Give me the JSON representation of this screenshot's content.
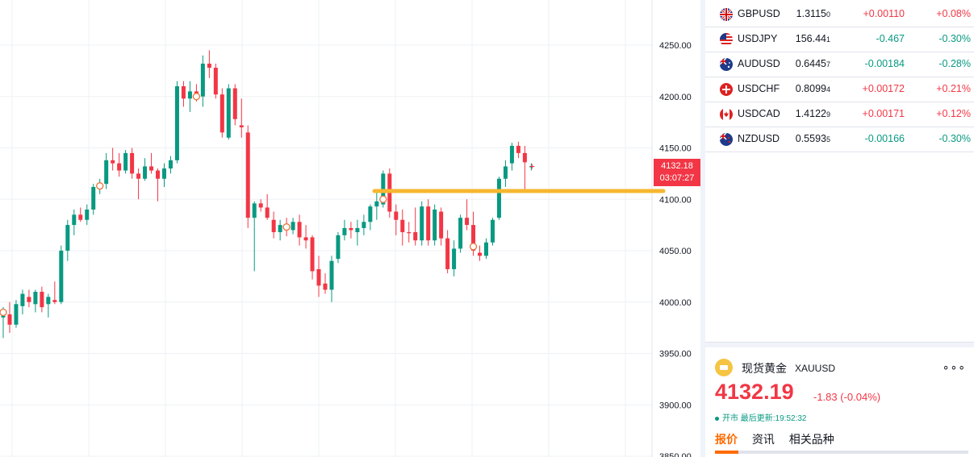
{
  "chart": {
    "price_ticks": [
      "4250.00",
      "4200.00",
      "4150.00",
      "4100.00",
      "4050.00",
      "4000.00",
      "3950.00",
      "3900.00",
      "3850.00"
    ],
    "current_price": "4132.18",
    "countdown": "03:07:27",
    "colors": {
      "up": "#f23645",
      "down": "#089981",
      "level_line": "#f7b731",
      "grid": "#eef0f4"
    }
  },
  "chart_data": {
    "type": "candlestick",
    "ylim": [
      3850,
      4270
    ],
    "horizontal_level": 4108,
    "candles": [
      {
        "o": 3985,
        "h": 3995,
        "l": 3965,
        "c": 3990
      },
      {
        "o": 3988,
        "h": 4000,
        "l": 3970,
        "c": 3978
      },
      {
        "o": 3978,
        "h": 4002,
        "l": 3975,
        "c": 3998
      },
      {
        "o": 3996,
        "h": 4012,
        "l": 3988,
        "c": 4008
      },
      {
        "o": 4005,
        "h": 4012,
        "l": 3995,
        "c": 4000
      },
      {
        "o": 3998,
        "h": 4012,
        "l": 3990,
        "c": 4010
      },
      {
        "o": 4010,
        "h": 4015,
        "l": 3990,
        "c": 3995
      },
      {
        "o": 3998,
        "h": 4008,
        "l": 3985,
        "c": 4005
      },
      {
        "o": 4002,
        "h": 4020,
        "l": 3998,
        "c": 4000
      },
      {
        "o": 4000,
        "h": 4055,
        "l": 3998,
        "c": 4050
      },
      {
        "o": 4050,
        "h": 4080,
        "l": 4040,
        "c": 4075
      },
      {
        "o": 4075,
        "h": 4090,
        "l": 4065,
        "c": 4085
      },
      {
        "o": 4085,
        "h": 4092,
        "l": 4078,
        "c": 4080
      },
      {
        "o": 4080,
        "h": 4095,
        "l": 4075,
        "c": 4090
      },
      {
        "o": 4090,
        "h": 4115,
        "l": 4085,
        "c": 4112
      },
      {
        "o": 4112,
        "h": 4120,
        "l": 4105,
        "c": 4113
      },
      {
        "o": 4115,
        "h": 4145,
        "l": 4110,
        "c": 4138
      },
      {
        "o": 4138,
        "h": 4150,
        "l": 4128,
        "c": 4135
      },
      {
        "o": 4135,
        "h": 4145,
        "l": 4122,
        "c": 4128
      },
      {
        "o": 4128,
        "h": 4148,
        "l": 4125,
        "c": 4145
      },
      {
        "o": 4145,
        "h": 4150,
        "l": 4120,
        "c": 4125
      },
      {
        "o": 4125,
        "h": 4130,
        "l": 4100,
        "c": 4120
      },
      {
        "o": 4120,
        "h": 4140,
        "l": 4118,
        "c": 4132
      },
      {
        "o": 4132,
        "h": 4145,
        "l": 4125,
        "c": 4128
      },
      {
        "o": 4128,
        "h": 4130,
        "l": 4098,
        "c": 4120
      },
      {
        "o": 4120,
        "h": 4135,
        "l": 4112,
        "c": 4130
      },
      {
        "o": 4130,
        "h": 4142,
        "l": 4125,
        "c": 4138
      },
      {
        "o": 4138,
        "h": 4215,
        "l": 4135,
        "c": 4210
      },
      {
        "o": 4210,
        "h": 4215,
        "l": 4190,
        "c": 4198
      },
      {
        "o": 4198,
        "h": 4215,
        "l": 4185,
        "c": 4205
      },
      {
        "o": 4205,
        "h": 4212,
        "l": 4195,
        "c": 4200
      },
      {
        "o": 4200,
        "h": 4240,
        "l": 4190,
        "c": 4232
      },
      {
        "o": 4232,
        "h": 4245,
        "l": 4218,
        "c": 4228
      },
      {
        "o": 4228,
        "h": 4232,
        "l": 4198,
        "c": 4202
      },
      {
        "o": 4202,
        "h": 4208,
        "l": 4160,
        "c": 4165
      },
      {
        "o": 4160,
        "h": 4212,
        "l": 4158,
        "c": 4208
      },
      {
        "o": 4208,
        "h": 4212,
        "l": 4172,
        "c": 4178
      },
      {
        "o": 4172,
        "h": 4198,
        "l": 4160,
        "c": 4170
      },
      {
        "o": 4165,
        "h": 4172,
        "l": 4072,
        "c": 4082
      },
      {
        "o": 4082,
        "h": 4098,
        "l": 4030,
        "c": 4096
      },
      {
        "o": 4096,
        "h": 4100,
        "l": 4088,
        "c": 4092
      },
      {
        "o": 4092,
        "h": 4105,
        "l": 4080,
        "c": 4082
      },
      {
        "o": 4080,
        "h": 4088,
        "l": 4062,
        "c": 4068
      },
      {
        "o": 4068,
        "h": 4080,
        "l": 4060,
        "c": 4075
      },
      {
        "o": 4075,
        "h": 4082,
        "l": 4064,
        "c": 4070
      },
      {
        "o": 4070,
        "h": 4082,
        "l": 4066,
        "c": 4078
      },
      {
        "o": 4078,
        "h": 4085,
        "l": 4055,
        "c": 4063
      },
      {
        "o": 4063,
        "h": 4075,
        "l": 4052,
        "c": 4060
      },
      {
        "o": 4063,
        "h": 4065,
        "l": 4022,
        "c": 4030
      },
      {
        "o": 4032,
        "h": 4045,
        "l": 4005,
        "c": 4016
      },
      {
        "o": 4018,
        "h": 4028,
        "l": 4008,
        "c": 4012
      },
      {
        "o": 4012,
        "h": 4045,
        "l": 4000,
        "c": 4040
      },
      {
        "o": 4042,
        "h": 4068,
        "l": 4038,
        "c": 4065
      },
      {
        "o": 4065,
        "h": 4080,
        "l": 4060,
        "c": 4072
      },
      {
        "o": 4072,
        "h": 4078,
        "l": 4062,
        "c": 4070
      },
      {
        "o": 4068,
        "h": 4080,
        "l": 4055,
        "c": 4072
      },
      {
        "o": 4072,
        "h": 4085,
        "l": 4065,
        "c": 4078
      },
      {
        "o": 4078,
        "h": 4095,
        "l": 4070,
        "c": 4093
      },
      {
        "o": 4093,
        "h": 4108,
        "l": 4080,
        "c": 4098
      },
      {
        "o": 4095,
        "h": 4128,
        "l": 4092,
        "c": 4125
      },
      {
        "o": 4125,
        "h": 4130,
        "l": 4082,
        "c": 4088
      },
      {
        "o": 4088,
        "h": 4095,
        "l": 4065,
        "c": 4080
      },
      {
        "o": 4080,
        "h": 4090,
        "l": 4055,
        "c": 4068
      },
      {
        "o": 4068,
        "h": 4078,
        "l": 4058,
        "c": 4067
      },
      {
        "o": 4068,
        "h": 4092,
        "l": 4055,
        "c": 4060
      },
      {
        "o": 4060,
        "h": 4098,
        "l": 4055,
        "c": 4093
      },
      {
        "o": 4093,
        "h": 4100,
        "l": 4055,
        "c": 4060
      },
      {
        "o": 4060,
        "h": 4095,
        "l": 4055,
        "c": 4090
      },
      {
        "o": 4088,
        "h": 4092,
        "l": 4055,
        "c": 4062
      },
      {
        "o": 4062,
        "h": 4070,
        "l": 4028,
        "c": 4032
      },
      {
        "o": 4032,
        "h": 4060,
        "l": 4025,
        "c": 4052
      },
      {
        "o": 4052,
        "h": 4085,
        "l": 4048,
        "c": 4082
      },
      {
        "o": 4082,
        "h": 4100,
        "l": 4070,
        "c": 4075
      },
      {
        "o": 4075,
        "h": 4088,
        "l": 4045,
        "c": 4050
      },
      {
        "o": 4048,
        "h": 4055,
        "l": 4040,
        "c": 4045
      },
      {
        "o": 4045,
        "h": 4062,
        "l": 4042,
        "c": 4058
      },
      {
        "o": 4058,
        "h": 4082,
        "l": 4055,
        "c": 4080
      },
      {
        "o": 4082,
        "h": 4122,
        "l": 4080,
        "c": 4120
      },
      {
        "o": 4120,
        "h": 4138,
        "l": 4112,
        "c": 4132
      },
      {
        "o": 4135,
        "h": 4155,
        "l": 4128,
        "c": 4152
      },
      {
        "o": 4152,
        "h": 4156,
        "l": 4140,
        "c": 4145
      },
      {
        "o": 4145,
        "h": 4152,
        "l": 4108,
        "c": 4136
      },
      {
        "o": 4132,
        "h": 4135,
        "l": 4128,
        "c": 4132
      }
    ],
    "markers": [
      {
        "index": 0,
        "price": 3990
      },
      {
        "index": 15,
        "price": 4113
      },
      {
        "index": 30,
        "price": 4200
      },
      {
        "index": 44,
        "price": 4073
      },
      {
        "index": 59,
        "price": 4100
      },
      {
        "index": 73,
        "price": 4054
      }
    ]
  },
  "watchlist": [
    {
      "symbol": "GBPUSD",
      "last": "1.3115",
      "last_sub": "0",
      "change": "+0.00110",
      "pct": "+0.08%",
      "dir": "up",
      "flag": "gb"
    },
    {
      "symbol": "USDJPY",
      "last": "156.44",
      "last_sub": "1",
      "change": "-0.467",
      "pct": "-0.30%",
      "dir": "down",
      "flag": "us"
    },
    {
      "symbol": "AUDUSD",
      "last": "0.6445",
      "last_sub": "7",
      "change": "-0.00184",
      "pct": "-0.28%",
      "dir": "down",
      "flag": "au"
    },
    {
      "symbol": "USDCHF",
      "last": "0.8099",
      "last_sub": "4",
      "change": "+0.00172",
      "pct": "+0.21%",
      "dir": "up",
      "flag": "us"
    },
    {
      "symbol": "USDCAD",
      "last": "1.4122",
      "last_sub": "9",
      "change": "+0.00171",
      "pct": "+0.12%",
      "dir": "up",
      "flag": "us"
    },
    {
      "symbol": "NZDUSD",
      "last": "0.5593",
      "last_sub": "5",
      "change": "-0.00166",
      "pct": "-0.30%",
      "dir": "down",
      "flag": "nz"
    }
  ],
  "detail": {
    "name": "现货黄金",
    "symbol": "XAUUSD",
    "more": "∘∘∘",
    "price": "4132.19",
    "change": "-1.83 (-0.04%)",
    "status": "开市 最后更新:19:52:32",
    "tabs": [
      "报价",
      "资讯",
      "相关品种"
    ]
  }
}
